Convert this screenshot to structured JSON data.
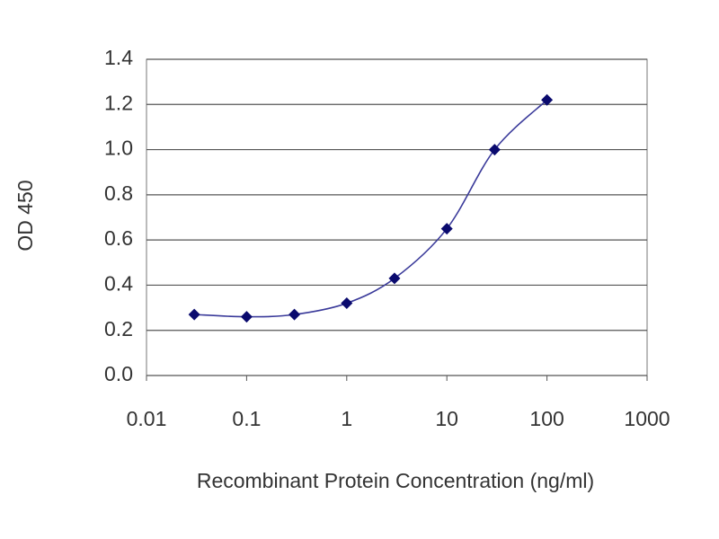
{
  "chart_data": {
    "type": "line",
    "x": [
      0.03,
      0.1,
      0.3,
      1,
      3,
      10,
      30,
      100
    ],
    "values": [
      0.27,
      0.26,
      0.27,
      0.32,
      0.43,
      0.65,
      1.0,
      1.22
    ],
    "color": "#3a3a9a",
    "marker_color": "#0a0a6e",
    "x_label": "Recombinant Protein Concentration (ng/ml)",
    "y_label": "OD 450",
    "xlim": [
      0.01,
      1000
    ],
    "xticks": [
      0.01,
      0.1,
      1,
      10,
      100,
      1000
    ],
    "x_log": true,
    "ylim": [
      0,
      1.4
    ],
    "yticks": [
      {
        "value": 0,
        "label": "0.0"
      },
      0.2,
      0.4,
      0.6,
      0.8,
      {
        "value": 1,
        "label": "1.0"
      },
      1.2,
      1.4
    ],
    "grid": true
  }
}
